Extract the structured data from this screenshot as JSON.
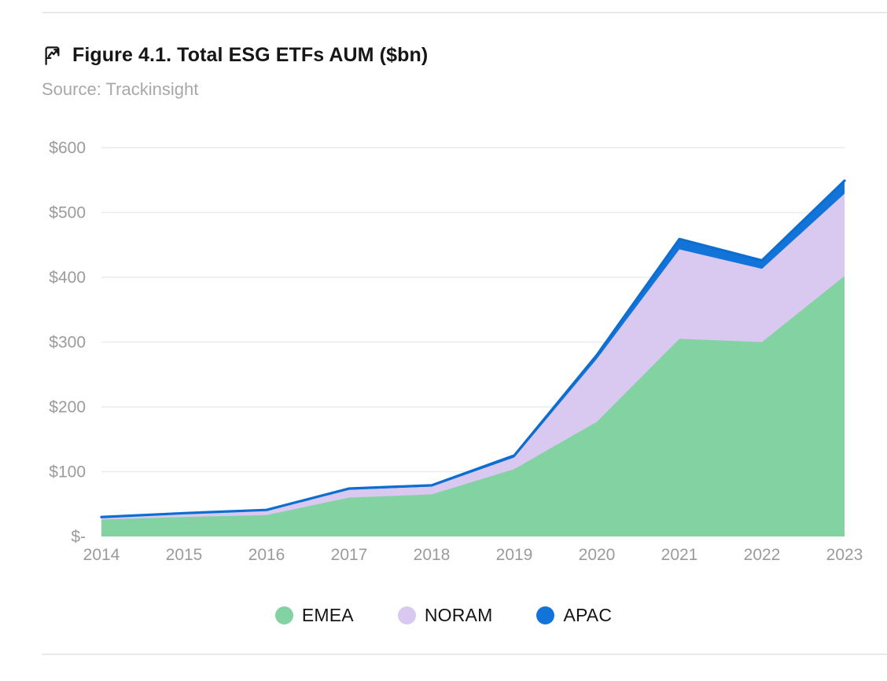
{
  "page": {
    "background": "#ffffff",
    "divider_color": "#e9e9e9"
  },
  "header": {
    "icon": "flag-chart-icon",
    "title": "Figure 4.1. Total ESG ETFs AUM ($bn)",
    "source": "Source: Trackinsight"
  },
  "chart_data": {
    "type": "area",
    "stacked": true,
    "title": "Figure 4.1. Total ESG ETFs AUM ($bn)",
    "source": "Trackinsight",
    "categories": [
      "2014",
      "2015",
      "2016",
      "2017",
      "2018",
      "2019",
      "2020",
      "2021",
      "2022",
      "2023"
    ],
    "series": [
      {
        "name": "EMEA",
        "color": "#82d3a1",
        "values": [
          26,
          30,
          33,
          60,
          65,
          104,
          177,
          305,
          300,
          402
        ]
      },
      {
        "name": "NORAM",
        "color": "#d9c8ef",
        "values": [
          3,
          5,
          7,
          12,
          12,
          18,
          97,
          138,
          113,
          127
        ]
      },
      {
        "name": "APAC",
        "color": "#1273d8",
        "values": [
          1,
          1,
          1,
          2,
          2,
          3,
          6,
          16,
          13,
          20
        ]
      }
    ],
    "totals": [
      30,
      36,
      41,
      74,
      79,
      125,
      280,
      459,
      426,
      549
    ],
    "top_line_color": "#0d6ed2",
    "y_ticks": [
      {
        "label": "$-",
        "value": 0
      },
      {
        "label": "$100",
        "value": 100
      },
      {
        "label": "$200",
        "value": 200
      },
      {
        "label": "$300",
        "value": 300
      },
      {
        "label": "$400",
        "value": 400
      },
      {
        "label": "$500",
        "value": 500
      },
      {
        "label": "$600",
        "value": 600
      }
    ],
    "ylim": [
      0,
      600
    ],
    "grid": "horizontal",
    "gridline_color": "#ececec",
    "axis_label_color": "#9b9b9b",
    "legend_position": "bottom"
  }
}
